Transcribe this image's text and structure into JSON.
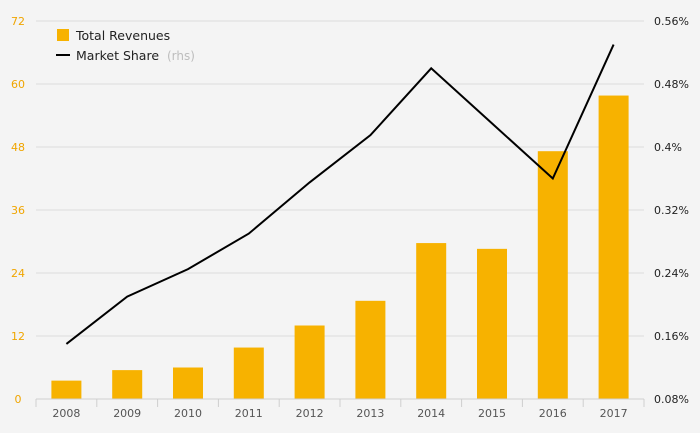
{
  "chart_data": {
    "type": "bar",
    "categories": [
      "2008",
      "2009",
      "2010",
      "2011",
      "2012",
      "2013",
      "2014",
      "2015",
      "2016",
      "2017"
    ],
    "series": [
      {
        "name": "Total Revenues",
        "type": "bar",
        "axis": "left",
        "color": "#f7b200",
        "values": [
          3.5,
          5.5,
          6.0,
          9.8,
          14.0,
          18.7,
          29.7,
          28.6,
          47.2,
          57.8
        ]
      },
      {
        "name": "Market Share",
        "name_suffix": "(rhs)",
        "type": "line",
        "axis": "right",
        "color": "#000000",
        "values": [
          0.15,
          0.21,
          0.245,
          0.29,
          0.355,
          0.415,
          0.5,
          0.43,
          0.36,
          0.53
        ]
      }
    ],
    "y_left": {
      "ticks": [
        0,
        12,
        24,
        36,
        48,
        60,
        72
      ],
      "tick_labels": [
        "0",
        "12",
        "24",
        "36",
        "48",
        "60",
        "72"
      ],
      "ylim": [
        0,
        72
      ],
      "color": "#f0a500"
    },
    "y_right": {
      "ticks": [
        0.08,
        0.16,
        0.24,
        0.32,
        0.4,
        0.48,
        0.56
      ],
      "tick_labels": [
        "0.08%",
        "0.16%",
        "0.24%",
        "0.32%",
        "0.4%",
        "0.48%",
        "0.56%"
      ],
      "ylim": [
        0.08,
        0.56
      ],
      "color": "#222222"
    },
    "title": "",
    "xlabel": "",
    "ylabel": "",
    "grid": true,
    "legend_position": "top-left"
  }
}
